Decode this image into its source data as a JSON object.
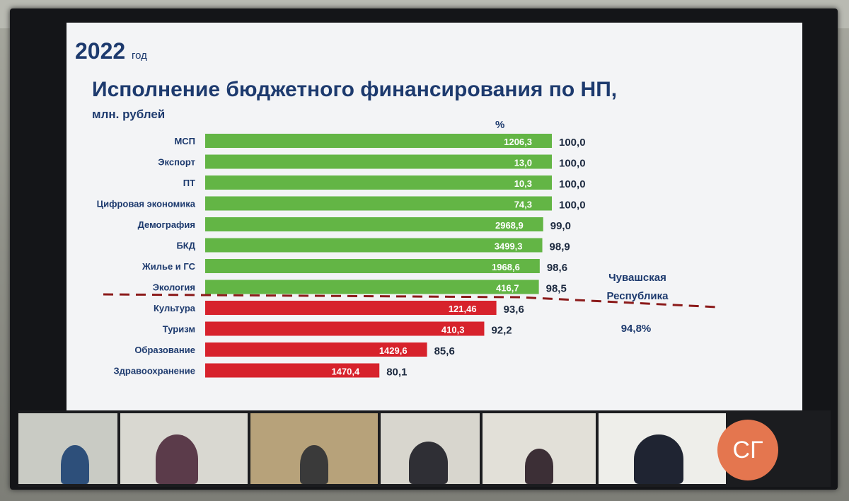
{
  "slide": {
    "year": "2022",
    "year_unit": "год",
    "title": "Исполнение бюджетного финансирования по НП,",
    "subtitle": "млн. рублей"
  },
  "chart_data": {
    "type": "bar",
    "orientation": "horizontal",
    "percent_header": "%",
    "categories": [
      "МСП",
      "Экспорт",
      "ПТ",
      "Цифровая экономика",
      "Демография",
      "БКД",
      "Жилье и ГС",
      "Экология",
      "Культура",
      "Туризм",
      "Образование",
      "Здравоохранение"
    ],
    "values": [
      100.0,
      100.0,
      100.0,
      100.0,
      99.0,
      98.9,
      98.6,
      98.5,
      93.6,
      92.2,
      85.6,
      80.1
    ],
    "value_labels": [
      "100,0",
      "100,0",
      "100,0",
      "100,0",
      "99,0",
      "98,9",
      "98,6",
      "98,5",
      "93,6",
      "92,2",
      "85,6",
      "80,1"
    ],
    "bar_labels": [
      "1206,3",
      "13,0",
      "10,3",
      "74,3",
      "2968,9",
      "3499,3",
      "1968,6",
      "416,7",
      "121,46",
      "410,3",
      "1429,6",
      "1470,4"
    ],
    "above_threshold_color": "#63b545",
    "below_threshold_color": "#d7222c",
    "threshold_value": 94.8,
    "threshold_label_lines": [
      "Чувашская",
      "Республика"
    ],
    "threshold_value_label": "94,8%",
    "threshold_line_color": "#8b1a1a"
  },
  "video_strip": {
    "avatar_initials": "СГ",
    "avatar_color": "#e4764f"
  }
}
